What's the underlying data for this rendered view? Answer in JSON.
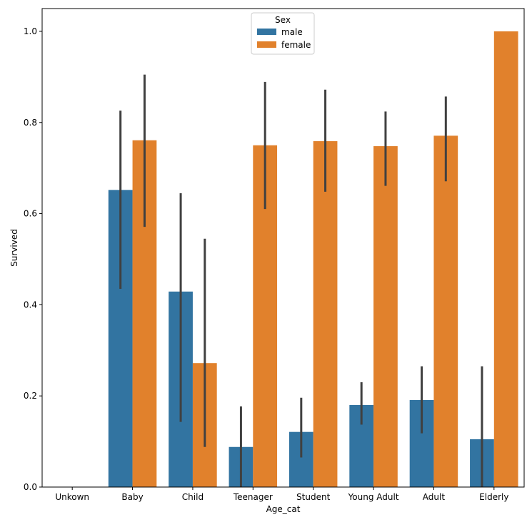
{
  "chart_data": {
    "type": "bar",
    "title": "",
    "xlabel": "Age_cat",
    "ylabel": "Survived",
    "ylim": [
      0,
      1.05
    ],
    "yticks": [
      "0.0",
      "0.2",
      "0.4",
      "0.6",
      "0.8",
      "1.0"
    ],
    "categories": [
      "Unkown",
      "Baby",
      "Child",
      "Teenager",
      "Student",
      "Young Adult",
      "Adult",
      "Elderly"
    ],
    "grid": false,
    "legend": {
      "title": "Sex",
      "placement": "top-center",
      "entries": [
        "male",
        "female"
      ]
    },
    "series": [
      {
        "name": "male",
        "color": "#3274a1",
        "values": [
          null,
          0.652,
          0.429,
          0.088,
          0.121,
          0.18,
          0.191,
          0.105
        ],
        "ci_low": [
          null,
          0.435,
          0.143,
          0.0,
          0.065,
          0.137,
          0.118,
          0.0
        ],
        "ci_high": [
          null,
          0.826,
          0.645,
          0.177,
          0.196,
          0.23,
          0.265,
          0.265
        ]
      },
      {
        "name": "female",
        "color": "#e1812c",
        "values": [
          null,
          0.761,
          0.272,
          0.75,
          0.759,
          0.748,
          0.771,
          1.0
        ],
        "ci_low": [
          null,
          0.571,
          0.088,
          0.61,
          0.648,
          0.661,
          0.671,
          1.0
        ],
        "ci_high": [
          null,
          0.905,
          0.545,
          0.889,
          0.872,
          0.824,
          0.857,
          1.0
        ]
      }
    ],
    "errorbar_color": "#404040"
  }
}
